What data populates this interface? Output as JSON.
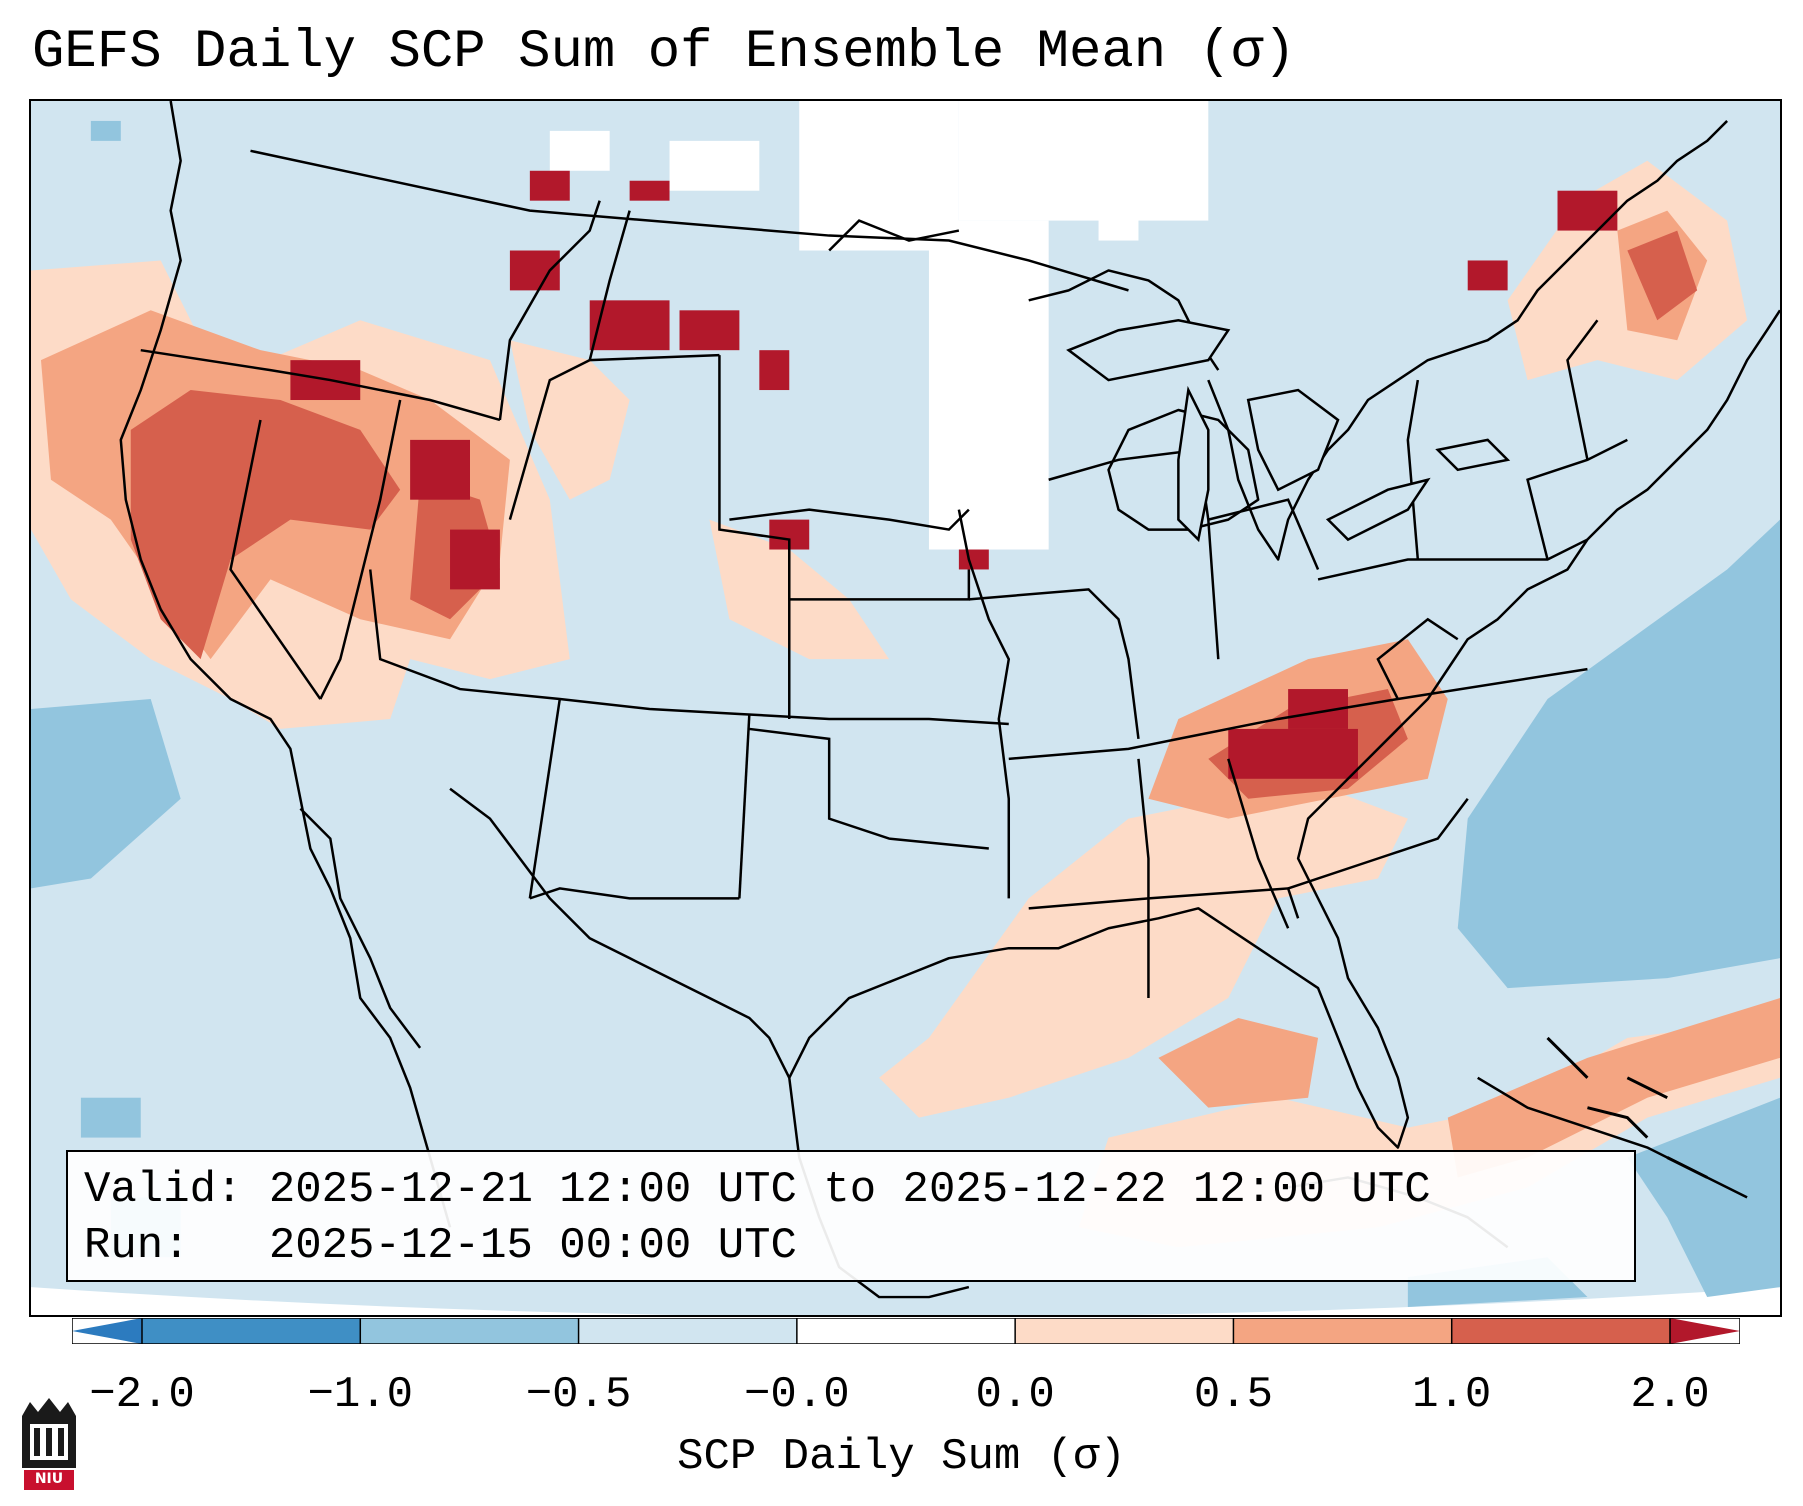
{
  "title": "GEFS Daily SCP Sum of Ensemble Mean (σ)",
  "info": {
    "valid_line": "Valid: 2025-12-21 12:00 UTC to 2025-12-22 12:00 UTC",
    "run_line": "Run:   2025-12-15 00:00 UTC"
  },
  "colorbar": {
    "label": "SCP Daily Sum (σ)",
    "ticks": [
      "−2.0",
      "−1.0",
      "−0.5",
      "−0.0",
      "0.0",
      "0.5",
      "1.0",
      "2.0"
    ],
    "bins": [
      {
        "color": "#2c7bbf"
      },
      {
        "color": "#3f8fc5"
      },
      {
        "color": "#92c5de"
      },
      {
        "color": "#d1e5f0"
      },
      {
        "color": "#ffffff"
      },
      {
        "color": "#fddbc7"
      },
      {
        "color": "#f4a582"
      },
      {
        "color": "#d6604d"
      },
      {
        "color": "#b2182b"
      }
    ]
  },
  "colors": {
    "neg_strong": "#92c5de",
    "neg_weak": "#d1e5f0",
    "neutral": "#ffffff",
    "pos_weak": "#fddbc7",
    "pos_mid": "#f4a582",
    "pos_high": "#d6604d",
    "pos_max": "#b2182b"
  },
  "logo": {
    "text": "NIU",
    "icon": "niu-logo-icon"
  }
}
